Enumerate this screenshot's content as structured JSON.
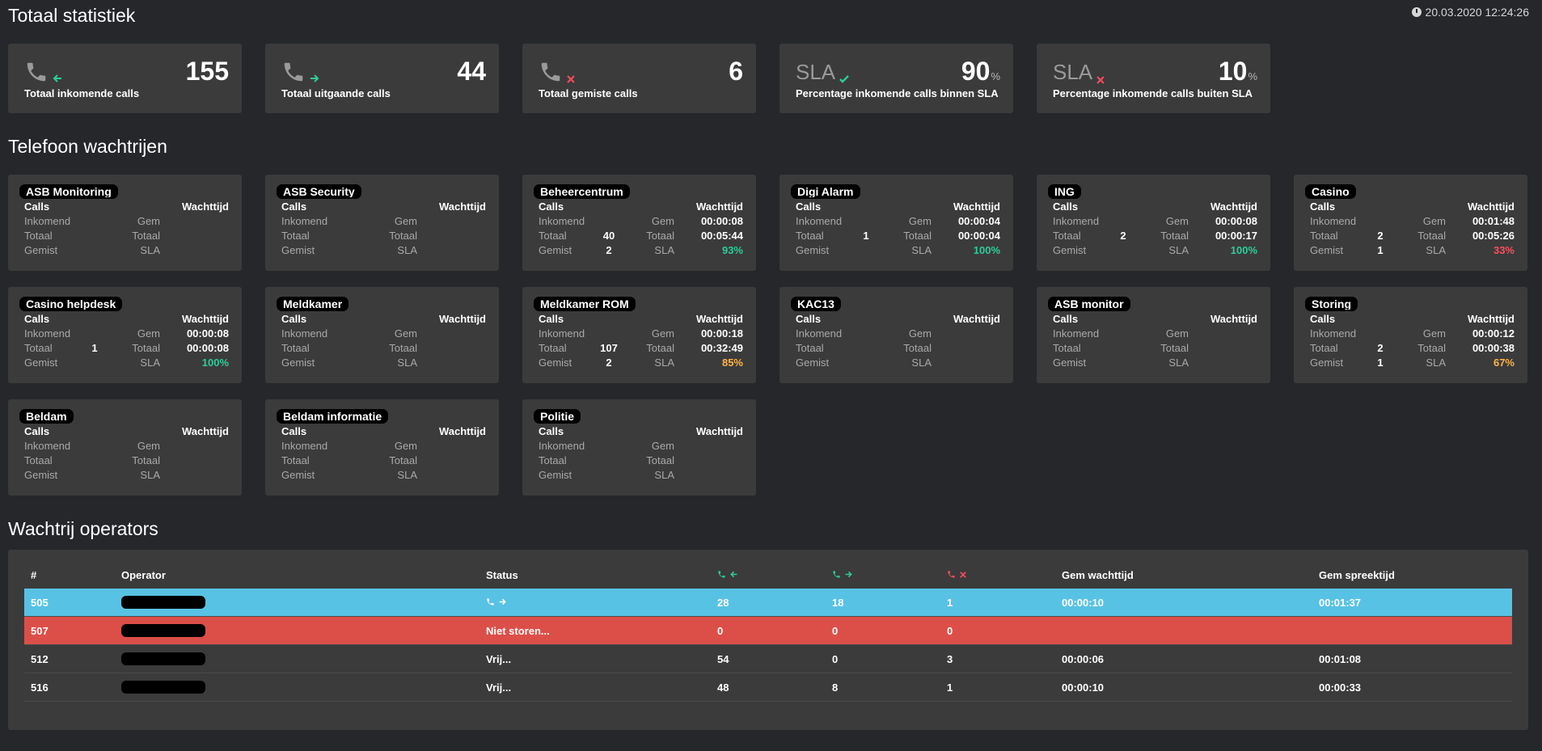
{
  "header": {
    "title": "Totaal statistiek",
    "timestamp": "20.03.2020 12:24:26"
  },
  "stats": [
    {
      "value": "155",
      "label": "Totaal inkomende calls",
      "kind": "in"
    },
    {
      "value": "44",
      "label": "Totaal uitgaande calls",
      "kind": "out"
    },
    {
      "value": "6",
      "label": "Totaal gemiste calls",
      "kind": "missed"
    },
    {
      "sla_word": "SLA",
      "value": "90",
      "unit": "%",
      "label": "Percentage inkomende calls binnen SLA",
      "kind": "sla-ok"
    },
    {
      "sla_word": "SLA",
      "value": "10",
      "unit": "%",
      "label": "Percentage inkomende calls buiten SLA",
      "kind": "sla-bad"
    }
  ],
  "queues_title": "Telefoon wachtrijen",
  "queue_labels": {
    "calls": "Calls",
    "wait": "Wachttijd",
    "inkomend": "Inkomend",
    "totaal": "Totaal",
    "gemist": "Gemist",
    "gem": "Gem",
    "totaal2": "Totaal",
    "sla": "SLA"
  },
  "queues": [
    {
      "name": "ASB Monitoring",
      "inkomend": "",
      "totaal": "",
      "gemist": "",
      "gem": "",
      "totaal_t": "",
      "sla": ""
    },
    {
      "name": "ASB Security",
      "inkomend": "",
      "totaal": "",
      "gemist": "",
      "gem": "",
      "totaal_t": "",
      "sla": ""
    },
    {
      "name": "Beheercentrum",
      "inkomend": "",
      "totaal": "40",
      "gemist": "2",
      "gem": "00:00:08",
      "totaal_t": "00:05:44",
      "sla": "93%",
      "sla_color": "green"
    },
    {
      "name": "Digi Alarm",
      "inkomend": "",
      "totaal": "1",
      "gemist": "",
      "gem": "00:00:04",
      "totaal_t": "00:00:04",
      "sla": "100%",
      "sla_color": "green"
    },
    {
      "name": "ING",
      "inkomend": "",
      "totaal": "2",
      "gemist": "",
      "gem": "00:00:08",
      "totaal_t": "00:00:17",
      "sla": "100%",
      "sla_color": "green"
    },
    {
      "name": "Casino",
      "inkomend": "",
      "totaal": "2",
      "gemist": "1",
      "gem": "00:01:48",
      "totaal_t": "00:05:26",
      "sla": "33%",
      "sla_color": "red"
    },
    {
      "name": "Casino helpdesk",
      "inkomend": "",
      "totaal": "1",
      "gemist": "",
      "gem": "00:00:08",
      "totaal_t": "00:00:08",
      "sla": "100%",
      "sla_color": "green"
    },
    {
      "name": "Meldkamer",
      "inkomend": "",
      "totaal": "",
      "gemist": "",
      "gem": "",
      "totaal_t": "",
      "sla": ""
    },
    {
      "name": "Meldkamer ROM",
      "inkomend": "",
      "totaal": "107",
      "gemist": "2",
      "gem": "00:00:18",
      "totaal_t": "00:32:49",
      "sla": "85%",
      "sla_color": "orange"
    },
    {
      "name": "KAC13",
      "inkomend": "",
      "totaal": "",
      "gemist": "",
      "gem": "",
      "totaal_t": "",
      "sla": ""
    },
    {
      "name": "ASB monitor",
      "inkomend": "",
      "totaal": "",
      "gemist": "",
      "gem": "",
      "totaal_t": "",
      "sla": ""
    },
    {
      "name": "Storing",
      "inkomend": "",
      "totaal": "2",
      "gemist": "1",
      "gem": "00:00:12",
      "totaal_t": "00:00:38",
      "sla": "67%",
      "sla_color": "orange"
    },
    {
      "name": "Beldam",
      "inkomend": "",
      "totaal": "",
      "gemist": "",
      "gem": "",
      "totaal_t": "",
      "sla": ""
    },
    {
      "name": "Beldam informatie",
      "inkomend": "",
      "totaal": "",
      "gemist": "",
      "gem": "",
      "totaal_t": "",
      "sla": ""
    },
    {
      "name": "Politie",
      "inkomend": "",
      "totaal": "",
      "gemist": "",
      "gem": "",
      "totaal_t": "",
      "sla": ""
    }
  ],
  "operators_title": "Wachtrij operators",
  "operators_table": {
    "headers": {
      "num": "#",
      "operator": "Operator",
      "status": "Status",
      "in": "",
      "out": "",
      "missed": "",
      "wait": "Gem wachttijd",
      "talk": "Gem spreektijd"
    },
    "rows": [
      {
        "num": "505",
        "status": "",
        "in": "28",
        "out": "18",
        "missed": "1",
        "wait": "00:00:10",
        "talk": "00:01:37",
        "row_color": "blue"
      },
      {
        "num": "507",
        "status": "Niet storen...",
        "in": "0",
        "out": "0",
        "missed": "0",
        "wait": "",
        "talk": "",
        "row_color": "red"
      },
      {
        "num": "512",
        "status": "Vrij...",
        "in": "54",
        "out": "0",
        "missed": "3",
        "wait": "00:00:06",
        "talk": "00:01:08",
        "row_color": ""
      },
      {
        "num": "516",
        "status": "Vrij...",
        "in": "48",
        "out": "8",
        "missed": "1",
        "wait": "00:00:10",
        "talk": "00:00:33",
        "row_color": ""
      }
    ]
  },
  "icons": {
    "phone": "phone-icon",
    "arrow_left": "arrow-left-icon",
    "arrow_right": "arrow-right-icon",
    "cross": "cross-icon",
    "check": "check-icon",
    "clock": "clock-icon"
  },
  "colors": {
    "accent_green": "#2ecc9a",
    "accent_red": "#ff4d5e",
    "accent_orange": "#ffb347",
    "row_blue": "#58c2e4",
    "row_red": "#dc4f49",
    "card": "#3b3b3b",
    "bg": "#25272b"
  }
}
